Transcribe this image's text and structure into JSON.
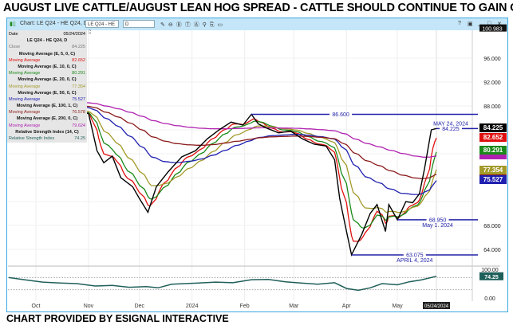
{
  "title": "AUGUST LIVE CATTLE/AUGUST LEAN HOG SPREAD -  CATTLE SHOULD CONTINUE TO GAIN ON HOGS",
  "footer": "CHART PROVIDED BY ESIGNAL INTERACTIVE",
  "toolbar": {
    "chart_label": "Chart: LE Q24 - HE Q24, D",
    "symbol_value": "LE Q24 - HE C",
    "interval_value": "D",
    "window_buttons": [
      "?",
      "▣",
      "_",
      "□",
      "✕"
    ]
  },
  "legend": {
    "date_label": "Date",
    "date_value": "05/24/2024",
    "symbol": "LE Q24 - HE Q24, D",
    "close_label": "Close",
    "close_value": "84.225",
    "studies": [
      {
        "header": "Moving Average (E, 5, 0, C)",
        "label": "Moving Average",
        "value": "82.652",
        "color": "#e01010"
      },
      {
        "header": "Moving Average (E, 10, 0, C)",
        "label": "Moving Average",
        "value": "80.291",
        "color": "#1a8a1a"
      },
      {
        "header": "Moving Average (E, 20, 0, C)",
        "label": "Moving Average",
        "value": "77.354",
        "color": "#a39a2a"
      },
      {
        "header": "Moving Average (E, 50, 0, C)",
        "label": "Moving Average",
        "value": "75.527",
        "color": "#2020b0"
      },
      {
        "header": "Moving Average (E, 100, 1, C)",
        "label": "Moving Average",
        "value": "76.578",
        "color": "#8b1a1a"
      },
      {
        "header": "Moving Average (E, 200, 0, C)",
        "label": "Moving Average",
        "value": "79.624",
        "color": "#b020b0"
      },
      {
        "header": "Relative Strength Index (14, C)",
        "label": "Relative Strength Index",
        "value": "74.25",
        "color": "#1f5f5a"
      }
    ]
  },
  "chart_data": {
    "type": "line",
    "ylim": [
      60,
      101
    ],
    "y_ticks": [
      "100.983",
      "96.000",
      "92.000",
      "88.000",
      "68.000",
      "64.000"
    ],
    "x_ticks": [
      [
        "2023-10-01",
        "Oct"
      ],
      [
        "2023-11-01",
        "Nov"
      ],
      [
        "2023-12-01",
        "Dec"
      ],
      [
        "2024-01-01",
        "2024"
      ],
      [
        "2024-02-01",
        "Feb"
      ],
      [
        "2024-03-01",
        "Mar"
      ],
      [
        "2024-04-01",
        "Apr"
      ],
      [
        "2024-05-01",
        "May"
      ]
    ],
    "last_date_label": "05/24/2024",
    "close": [
      [
        "2023-09-15",
        88.0
      ],
      [
        "2023-09-22",
        87.5
      ],
      [
        "2023-09-29",
        88.2
      ],
      [
        "2023-10-06",
        87.3
      ],
      [
        "2023-10-13",
        87.8
      ],
      [
        "2023-10-20",
        87.0
      ],
      [
        "2023-10-27",
        86.6
      ],
      [
        "2023-11-01",
        86.8
      ],
      [
        "2023-11-06",
        80.5
      ],
      [
        "2023-11-10",
        78.5
      ],
      [
        "2023-11-15",
        79.6
      ],
      [
        "2023-11-20",
        76.0
      ],
      [
        "2023-11-27",
        74.5
      ],
      [
        "2023-12-01",
        72.5
      ],
      [
        "2023-12-06",
        70.2
      ],
      [
        "2023-12-11",
        74.5
      ],
      [
        "2023-12-18",
        77.0
      ],
      [
        "2023-12-26",
        79.5
      ],
      [
        "2024-01-03",
        80.5
      ],
      [
        "2024-01-10",
        82.5
      ],
      [
        "2024-01-17",
        84.0
      ],
      [
        "2024-01-24",
        85.3
      ],
      [
        "2024-01-31",
        84.8
      ],
      [
        "2024-02-05",
        86.6
      ],
      [
        "2024-02-09",
        85.0
      ],
      [
        "2024-02-14",
        84.3
      ],
      [
        "2024-02-21",
        83.5
      ],
      [
        "2024-02-28",
        83.8
      ],
      [
        "2024-03-06",
        82.5
      ],
      [
        "2024-03-13",
        81.6
      ],
      [
        "2024-03-20",
        81.3
      ],
      [
        "2024-03-25",
        79.0
      ],
      [
        "2024-03-28",
        72.5
      ],
      [
        "2024-04-01",
        67.0
      ],
      [
        "2024-04-04",
        63.075
      ],
      [
        "2024-04-10",
        66.5
      ],
      [
        "2024-04-15",
        70.0
      ],
      [
        "2024-04-19",
        71.5
      ],
      [
        "2024-04-24",
        67.0
      ],
      [
        "2024-04-26",
        71.5
      ],
      [
        "2024-05-01",
        68.95
      ],
      [
        "2024-05-06",
        72.0
      ],
      [
        "2024-05-10",
        71.8
      ],
      [
        "2024-05-14",
        73.3
      ],
      [
        "2024-05-17",
        77.5
      ],
      [
        "2024-05-21",
        84.0
      ],
      [
        "2024-05-24",
        84.225
      ]
    ],
    "ma_periods": [
      5,
      10,
      20,
      50,
      100,
      200
    ],
    "final_values": {
      "close": 84.225,
      "ma5": 82.652,
      "ma10": 80.291,
      "ma20": 77.354,
      "ma50": 75.527,
      "ma100": 76.578,
      "ma200": 79.624
    },
    "annotations": [
      {
        "price": 86.6,
        "from": "2024-02-05",
        "text": "86.600"
      },
      {
        "price": 84.225,
        "from": "2024-05-24",
        "text": "84.225",
        "date_text": "MAY 24, 2024"
      },
      {
        "price": 68.95,
        "from": "2024-05-01",
        "text": "68.950",
        "date_text": "May 1. 2024"
      },
      {
        "price": 63.075,
        "from": "2024-04-04",
        "text": "63.075",
        "date_text": "APRIL 4, 2024"
      }
    ],
    "rsi": {
      "ylim": [
        0,
        100
      ],
      "levels": [
        70,
        30
      ],
      "ticks": [
        "100.00",
        "0.00"
      ],
      "last": 74.25,
      "values": [
        [
          "2023-09-15",
          70
        ],
        [
          "2023-09-25",
          62
        ],
        [
          "2023-10-05",
          55
        ],
        [
          "2023-10-15",
          52
        ],
        [
          "2023-10-25",
          50
        ],
        [
          "2023-11-05",
          42
        ],
        [
          "2023-11-15",
          44
        ],
        [
          "2023-11-25",
          38
        ],
        [
          "2023-12-05",
          40
        ],
        [
          "2023-12-12",
          36
        ],
        [
          "2023-12-20",
          48
        ],
        [
          "2024-01-05",
          52
        ],
        [
          "2024-01-15",
          55
        ],
        [
          "2024-01-25",
          53
        ],
        [
          "2024-02-05",
          63
        ],
        [
          "2024-02-15",
          64
        ],
        [
          "2024-02-25",
          56
        ],
        [
          "2024-03-05",
          52
        ],
        [
          "2024-03-15",
          48
        ],
        [
          "2024-03-25",
          53
        ],
        [
          "2024-04-01",
          34
        ],
        [
          "2024-04-08",
          28
        ],
        [
          "2024-04-15",
          36
        ],
        [
          "2024-04-22",
          50
        ],
        [
          "2024-05-01",
          46
        ],
        [
          "2024-05-08",
          56
        ],
        [
          "2024-05-15",
          62
        ],
        [
          "2024-05-24",
          74.25
        ]
      ]
    }
  }
}
